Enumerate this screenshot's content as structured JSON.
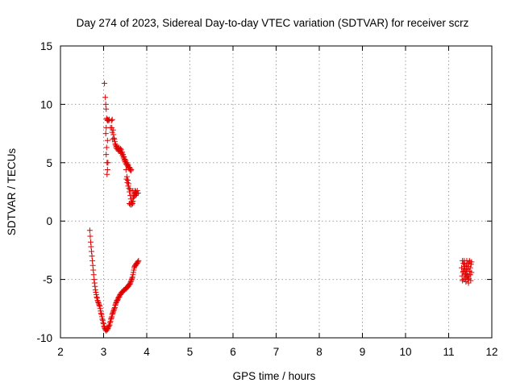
{
  "chart_data": {
    "type": "scatter",
    "title": "Day 274 of 2023, Sidereal Day-to-day VTEC variation (SDTVAR) for receiver scrz",
    "xlabel": "GPS time / hours",
    "ylabel": "SDTVAR / TECUs",
    "xlim": [
      2,
      12
    ],
    "ylim": [
      -10,
      15
    ],
    "xticks": [
      "2",
      "3",
      "4",
      "5",
      "6",
      "7",
      "8",
      "9",
      "10",
      "11",
      "12"
    ],
    "yticks": [
      "-10",
      "-5",
      "0",
      "5",
      "10",
      "15"
    ],
    "grid": true,
    "marker": "+",
    "color": "#e00000",
    "series": [
      {
        "name": "track-descending-upper",
        "points": [
          [
            3.02,
            11.8
          ],
          [
            3.04,
            10.6
          ],
          [
            3.05,
            10.0
          ],
          [
            3.06,
            9.6
          ],
          [
            3.07,
            8.8
          ],
          [
            3.08,
            8.7
          ],
          [
            3.05,
            7.5
          ],
          [
            3.06,
            8.0
          ],
          [
            3.09,
            8.6
          ],
          [
            3.1,
            8.7
          ],
          [
            3.12,
            8.6
          ],
          [
            3.13,
            8.7
          ],
          [
            3.07,
            6.3
          ],
          [
            3.09,
            6.9
          ],
          [
            3.06,
            5.7
          ],
          [
            3.1,
            5.0
          ],
          [
            3.08,
            5.0
          ],
          [
            3.09,
            4.4
          ],
          [
            3.08,
            4.0
          ],
          [
            3.16,
            8.0
          ],
          [
            3.18,
            8.6
          ],
          [
            3.19,
            8.0
          ],
          [
            3.2,
            8.7
          ],
          [
            3.2,
            7.6
          ],
          [
            3.21,
            7.0
          ],
          [
            3.22,
            7.8
          ],
          [
            3.23,
            7.4
          ],
          [
            3.24,
            7.1
          ],
          [
            3.25,
            7.0
          ],
          [
            3.26,
            6.8
          ],
          [
            3.27,
            6.6
          ],
          [
            3.28,
            6.5
          ],
          [
            3.29,
            6.3
          ],
          [
            3.3,
            6.4
          ],
          [
            3.31,
            6.2
          ],
          [
            3.32,
            6.3
          ],
          [
            3.33,
            6.1
          ],
          [
            3.34,
            6.2
          ],
          [
            3.35,
            6.0
          ],
          [
            3.36,
            6.3
          ],
          [
            3.37,
            6.1
          ],
          [
            3.38,
            6.0
          ],
          [
            3.39,
            6.2
          ],
          [
            3.4,
            5.9
          ],
          [
            3.41,
            6.1
          ],
          [
            3.42,
            5.8
          ],
          [
            3.43,
            5.9
          ],
          [
            3.44,
            5.6
          ],
          [
            3.45,
            5.7
          ],
          [
            3.46,
            5.4
          ],
          [
            3.47,
            5.5
          ],
          [
            3.48,
            5.2
          ],
          [
            3.49,
            5.3
          ],
          [
            3.5,
            5.1
          ],
          [
            3.51,
            5.2
          ],
          [
            3.52,
            4.9
          ],
          [
            3.53,
            5.0
          ],
          [
            3.54,
            4.8
          ],
          [
            3.55,
            4.9
          ],
          [
            3.56,
            4.7
          ],
          [
            3.57,
            4.8
          ],
          [
            3.58,
            4.6
          ],
          [
            3.59,
            4.5
          ],
          [
            3.6,
            4.6
          ],
          [
            3.61,
            4.4
          ],
          [
            3.62,
            4.5
          ],
          [
            3.63,
            4.3
          ],
          [
            3.64,
            4.4
          ],
          [
            3.52,
            4.4
          ],
          [
            3.53,
            3.6
          ],
          [
            3.54,
            3.8
          ],
          [
            3.55,
            3.3
          ],
          [
            3.56,
            3.5
          ],
          [
            3.57,
            3.0
          ],
          [
            3.58,
            3.2
          ],
          [
            3.59,
            2.8
          ],
          [
            3.6,
            2.5
          ],
          [
            3.61,
            2.7
          ],
          [
            3.62,
            2.2
          ],
          [
            3.63,
            1.9
          ],
          [
            3.64,
            1.6
          ],
          [
            3.65,
            1.4
          ],
          [
            3.6,
            1.5
          ],
          [
            3.62,
            1.4
          ],
          [
            3.66,
            1.6
          ],
          [
            3.67,
            1.5
          ],
          [
            3.68,
            1.7
          ],
          [
            3.69,
            2.0
          ],
          [
            3.7,
            2.3
          ],
          [
            3.71,
            2.1
          ],
          [
            3.72,
            2.4
          ],
          [
            3.74,
            2.2
          ],
          [
            3.75,
            2.5
          ],
          [
            3.77,
            2.4
          ],
          [
            3.78,
            2.6
          ],
          [
            3.8,
            2.4
          ],
          [
            3.68,
            2.6
          ],
          [
            3.73,
            2.6
          ],
          [
            3.76,
            2.3
          ]
        ]
      },
      {
        "name": "track-rising-lower",
        "points": [
          [
            2.68,
            -0.8
          ],
          [
            2.69,
            -1.3
          ],
          [
            2.7,
            -1.8
          ],
          [
            2.71,
            -2.2
          ],
          [
            2.72,
            -2.6
          ],
          [
            2.73,
            -3.0
          ],
          [
            2.74,
            -3.4
          ],
          [
            2.75,
            -3.8
          ],
          [
            2.76,
            -4.2
          ],
          [
            2.77,
            -4.6
          ],
          [
            2.78,
            -5.0
          ],
          [
            2.79,
            -5.3
          ],
          [
            2.8,
            -5.6
          ],
          [
            2.81,
            -5.9
          ],
          [
            2.82,
            -6.1
          ],
          [
            2.83,
            -6.3
          ],
          [
            2.84,
            -6.5
          ],
          [
            2.85,
            -6.6
          ],
          [
            2.86,
            -6.8
          ],
          [
            2.87,
            -6.9
          ],
          [
            2.88,
            -7.0
          ],
          [
            2.89,
            -7.1
          ],
          [
            2.9,
            -7.2
          ],
          [
            2.91,
            -7.3
          ],
          [
            2.92,
            -7.5
          ],
          [
            2.93,
            -7.7
          ],
          [
            2.94,
            -7.9
          ],
          [
            2.95,
            -8.0
          ],
          [
            2.96,
            -8.2
          ],
          [
            2.97,
            -8.4
          ],
          [
            2.98,
            -8.5
          ],
          [
            2.99,
            -8.7
          ],
          [
            3.0,
            -8.8
          ],
          [
            3.01,
            -9.0
          ],
          [
            3.02,
            -9.1
          ],
          [
            3.03,
            -9.2
          ],
          [
            3.04,
            -9.3
          ],
          [
            3.05,
            -9.3
          ],
          [
            3.06,
            -9.4
          ],
          [
            3.07,
            -9.3
          ],
          [
            3.08,
            -9.2
          ],
          [
            3.09,
            -9.3
          ],
          [
            3.1,
            -9.2
          ],
          [
            3.11,
            -9.1
          ],
          [
            3.12,
            -9.0
          ],
          [
            3.13,
            -8.9
          ],
          [
            3.14,
            -8.9
          ],
          [
            3.15,
            -8.7
          ],
          [
            3.16,
            -8.6
          ],
          [
            3.17,
            -8.4
          ],
          [
            3.18,
            -8.3
          ],
          [
            3.19,
            -8.2
          ],
          [
            3.2,
            -8.0
          ],
          [
            3.21,
            -7.9
          ],
          [
            3.22,
            -7.8
          ],
          [
            3.23,
            -7.7
          ],
          [
            3.24,
            -7.6
          ],
          [
            3.25,
            -7.5
          ],
          [
            3.26,
            -7.4
          ],
          [
            3.27,
            -7.2
          ],
          [
            3.28,
            -7.1
          ],
          [
            3.29,
            -7.0
          ],
          [
            3.3,
            -6.9
          ],
          [
            3.31,
            -6.8
          ],
          [
            3.32,
            -6.8
          ],
          [
            3.33,
            -6.7
          ],
          [
            3.34,
            -6.6
          ],
          [
            3.35,
            -6.5
          ],
          [
            3.36,
            -6.5
          ],
          [
            3.37,
            -6.4
          ],
          [
            3.38,
            -6.3
          ],
          [
            3.39,
            -6.3
          ],
          [
            3.4,
            -6.2
          ],
          [
            3.41,
            -6.2
          ],
          [
            3.42,
            -6.1
          ],
          [
            3.43,
            -6.1
          ],
          [
            3.44,
            -6.0
          ],
          [
            3.45,
            -6.0
          ],
          [
            3.46,
            -6.0
          ],
          [
            3.47,
            -5.9
          ],
          [
            3.48,
            -5.9
          ],
          [
            3.49,
            -5.9
          ],
          [
            3.5,
            -5.8
          ],
          [
            3.51,
            -5.8
          ],
          [
            3.52,
            -5.8
          ],
          [
            3.53,
            -5.7
          ],
          [
            3.54,
            -5.7
          ],
          [
            3.55,
            -5.7
          ],
          [
            3.56,
            -5.6
          ],
          [
            3.57,
            -5.6
          ],
          [
            3.58,
            -5.5
          ],
          [
            3.59,
            -5.5
          ],
          [
            3.6,
            -5.4
          ],
          [
            3.61,
            -5.4
          ],
          [
            3.62,
            -5.3
          ],
          [
            3.63,
            -5.2
          ],
          [
            3.64,
            -5.1
          ],
          [
            3.65,
            -5.0
          ],
          [
            3.66,
            -4.9
          ],
          [
            3.67,
            -4.8
          ],
          [
            3.68,
            -4.6
          ],
          [
            3.69,
            -4.4
          ],
          [
            3.7,
            -4.2
          ],
          [
            3.71,
            -4.0
          ],
          [
            3.72,
            -3.9
          ],
          [
            3.73,
            -3.8
          ],
          [
            3.74,
            -3.8
          ],
          [
            3.75,
            -3.7
          ],
          [
            3.76,
            -3.7
          ],
          [
            3.77,
            -3.6
          ],
          [
            3.78,
            -3.6
          ],
          [
            3.79,
            -3.5
          ],
          [
            3.8,
            -3.5
          ],
          [
            3.81,
            -3.4
          ]
        ]
      },
      {
        "name": "cluster-late",
        "points": [
          [
            11.32,
            -3.4
          ],
          [
            11.34,
            -3.6
          ],
          [
            11.36,
            -3.9
          ],
          [
            11.38,
            -4.2
          ],
          [
            11.4,
            -4.5
          ],
          [
            11.42,
            -4.8
          ],
          [
            11.44,
            -5.0
          ],
          [
            11.46,
            -4.7
          ],
          [
            11.48,
            -4.3
          ],
          [
            11.5,
            -4.0
          ],
          [
            11.52,
            -3.7
          ],
          [
            11.49,
            -3.5
          ],
          [
            11.45,
            -3.6
          ],
          [
            11.41,
            -3.8
          ],
          [
            11.37,
            -4.1
          ],
          [
            11.33,
            -4.4
          ],
          [
            11.31,
            -4.7
          ],
          [
            11.35,
            -5.0
          ],
          [
            11.39,
            -4.9
          ],
          [
            11.43,
            -4.6
          ],
          [
            11.47,
            -4.9
          ],
          [
            11.51,
            -5.1
          ],
          [
            11.53,
            -4.4
          ],
          [
            11.3,
            -4.0
          ],
          [
            11.36,
            -3.4
          ],
          [
            11.42,
            -3.4
          ],
          [
            11.48,
            -3.4
          ],
          [
            11.53,
            -3.5
          ],
          [
            11.32,
            -5.1
          ],
          [
            11.4,
            -5.2
          ],
          [
            11.46,
            -5.3
          ],
          [
            11.34,
            -4.3
          ],
          [
            11.38,
            -4.6
          ],
          [
            11.44,
            -4.1
          ],
          [
            11.5,
            -4.6
          ],
          [
            11.41,
            -4.2
          ],
          [
            11.37,
            -3.7
          ],
          [
            11.45,
            -3.9
          ]
        ]
      }
    ]
  }
}
